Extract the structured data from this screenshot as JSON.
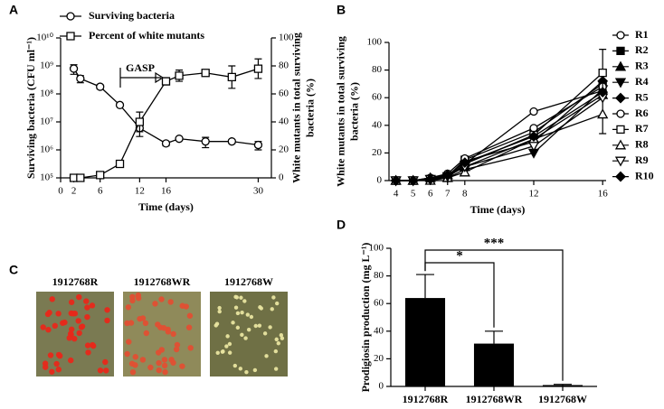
{
  "chart_data": [
    {
      "type": "line",
      "panel": "A",
      "x_label": "Time (days)",
      "y_label": [
        "Surviving bacteria (CFU ml⁻¹)"
      ],
      "y2_label": [
        "White mutants in total surviving",
        "bacteria (%)"
      ],
      "xlim": [
        0,
        32
      ],
      "xticks": [
        0,
        2,
        6,
        12,
        16,
        30
      ],
      "ylim": [
        100000,
        10000000000
      ],
      "log_y": true,
      "yticks": [
        {
          "value": 100000,
          "label": "10⁵"
        },
        {
          "value": 1000000,
          "label": "10⁶"
        },
        {
          "value": 10000000,
          "label": "10⁷"
        },
        {
          "value": 100000000,
          "label": "10⁸"
        },
        {
          "value": 1000000000,
          "label": "10⁹"
        },
        {
          "value": 10000000000,
          "label": "10¹⁰"
        }
      ],
      "y2lim": [
        0,
        100
      ],
      "y2ticks": [
        0,
        20,
        40,
        60,
        80,
        100
      ],
      "x": [
        2,
        3,
        6,
        9,
        12,
        16,
        18,
        22,
        26,
        30
      ],
      "legend": "top",
      "series": [
        {
          "name": "Surviving bacteria",
          "color": "#000000",
          "marker": "circle-open",
          "values": [
            800000000,
            350000000,
            180000000,
            40000000,
            6000000,
            1700000,
            2500000,
            2000000,
            2000000,
            1500000
          ],
          "errors": [
            300000000,
            100000000,
            30000000,
            5000000,
            3000000,
            300000,
            300000,
            800000,
            300000,
            500000
          ]
        },
        {
          "name": "Percent of white mutants",
          "color": "#000000",
          "marker": "square-open",
          "axis": "y2",
          "values": [
            0,
            0,
            2,
            10,
            40,
            69,
            73,
            75,
            72,
            78
          ],
          "errors": [
            0,
            0,
            1,
            1,
            7,
            2,
            4,
            2,
            8,
            7
          ]
        }
      ],
      "annotations": [
        "GASP"
      ]
    },
    {
      "type": "line",
      "panel": "B",
      "x_label": "Time (days)",
      "y_label": [
        "White mutants in total surviving",
        "bacteria (%)"
      ],
      "xlim": [
        3.6,
        16.2
      ],
      "xticks": [
        4,
        5,
        6,
        7,
        8,
        12,
        16
      ],
      "ylim": [
        0,
        100
      ],
      "yticks": [
        0,
        20,
        40,
        60,
        80,
        100
      ],
      "x": [
        4,
        5,
        6,
        7,
        8,
        12,
        16
      ],
      "legend": "right",
      "series": [
        {
          "name": "R1",
          "color": "#000000",
          "marker": "circle-open",
          "values": [
            0,
            0,
            1,
            3,
            12,
            50,
            65
          ]
        },
        {
          "name": "R2",
          "color": "#000000",
          "marker": "square-filled",
          "values": [
            0,
            0,
            1,
            3,
            15,
            35,
            70
          ]
        },
        {
          "name": "R3",
          "color": "#000000",
          "marker": "triangle-up-filled",
          "values": [
            0,
            0,
            2,
            4,
            10,
            30,
            62
          ]
        },
        {
          "name": "R4",
          "color": "#000000",
          "marker": "triangle-down-filled",
          "values": [
            0,
            0,
            1,
            2,
            8,
            20,
            66
          ]
        },
        {
          "name": "R5",
          "color": "#000000",
          "marker": "diamond-filled",
          "values": [
            0,
            0,
            1,
            3,
            14,
            28,
            72
          ]
        },
        {
          "name": "R6",
          "color": "#000000",
          "marker": "circle-open",
          "values": [
            0,
            0,
            2,
            5,
            16,
            38,
            68
          ]
        },
        {
          "name": "R7",
          "color": "#000000",
          "marker": "square-open",
          "values": [
            0,
            0,
            1,
            2,
            12,
            33,
            78
          ],
          "errors": [
            0,
            0,
            0,
            0,
            0,
            0,
            17
          ]
        },
        {
          "name": "R8",
          "color": "#000000",
          "marker": "triangle-up-open",
          "values": [
            0,
            0,
            0,
            2,
            6,
            30,
            48
          ],
          "errors": [
            0,
            0,
            0,
            0,
            0,
            0,
            14
          ]
        },
        {
          "name": "R9",
          "color": "#000000",
          "marker": "triangle-down-open",
          "values": [
            0,
            0,
            1,
            3,
            10,
            25,
            60
          ]
        },
        {
          "name": "R10",
          "color": "#000000",
          "marker": "diamond-filled",
          "values": [
            0,
            0,
            1,
            4,
            13,
            32,
            64
          ]
        }
      ]
    },
    {
      "type": "bar",
      "panel": "D",
      "y_label": [
        "Prodigiosin production (mg L⁻¹)"
      ],
      "categories": [
        "1912768R",
        "1912768WR",
        "1912768W"
      ],
      "values": [
        64,
        31,
        1
      ],
      "errors": [
        17,
        9,
        0.5
      ],
      "color": "#000000",
      "ylim": [
        0,
        100
      ],
      "yticks": [
        0,
        20,
        40,
        60,
        80,
        100
      ],
      "annotations": [
        "*",
        "***"
      ]
    }
  ],
  "panel_c": {
    "panel": "C",
    "captions": [
      "1912768R",
      "1912768WR",
      "1912768W"
    ]
  }
}
